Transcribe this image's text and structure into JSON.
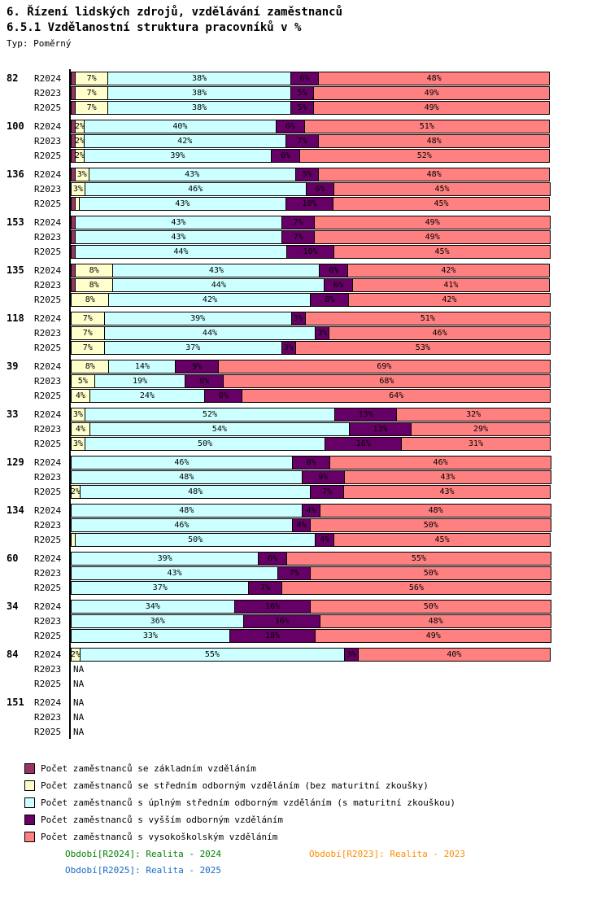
{
  "header": {
    "title1": "6. Řízení lidských zdrojů, vzdělávání zaměstnanců",
    "title2": "6.5.1 Vzdělanostní struktura pracovníků v %",
    "type_label": "Typ: Poměrný"
  },
  "chart_data": {
    "type": "bar",
    "orientation": "horizontal",
    "stacked": true,
    "value_unit": "%",
    "xlim": [
      0,
      100
    ],
    "na_text": "NA",
    "axis_color": "#000000",
    "series": [
      {
        "name": "Počet zaměstnanců se základním vzděláním",
        "color": "#993366"
      },
      {
        "name": "Počet zaměstnanců se středním odborným vzděláním (bez maturitní zkoušky)",
        "color": "#FFFFCC"
      },
      {
        "name": "Počet zaměstnanců s úplným středním odborným vzděláním (s maturitní zkouškou)",
        "color": "#CCFFFF"
      },
      {
        "name": "Počet zaměstnanců s vyšším odborným vzděláním",
        "color": "#660066"
      },
      {
        "name": "Počet zaměstnanců s vysokoškolským vzděláním",
        "color": "#FF8080"
      }
    ],
    "groups": [
      {
        "label": "82",
        "rows": [
          {
            "period": "R2024",
            "values": [
              1,
              7,
              38,
              6,
              48
            ]
          },
          {
            "period": "R2023",
            "values": [
              1,
              7,
              38,
              5,
              49
            ]
          },
          {
            "period": "R2025",
            "values": [
              1,
              7,
              38,
              5,
              49
            ]
          }
        ]
      },
      {
        "label": "100",
        "rows": [
          {
            "period": "R2024",
            "values": [
              1,
              2,
              40,
              6,
              51
            ]
          },
          {
            "period": "R2023",
            "values": [
              1,
              2,
              42,
              7,
              48
            ]
          },
          {
            "period": "R2025",
            "values": [
              1,
              2,
              39,
              6,
              52
            ]
          }
        ]
      },
      {
        "label": "136",
        "rows": [
          {
            "period": "R2024",
            "values": [
              1,
              3,
              43,
              5,
              48
            ]
          },
          {
            "period": "R2023",
            "values": [
              0,
              3,
              46,
              6,
              45
            ]
          },
          {
            "period": "R2025",
            "values": [
              1,
              1,
              43,
              10,
              45
            ]
          }
        ]
      },
      {
        "label": "153",
        "rows": [
          {
            "period": "R2024",
            "values": [
              1,
              0,
              43,
              7,
              49
            ]
          },
          {
            "period": "R2023",
            "values": [
              1,
              0,
              43,
              7,
              49
            ]
          },
          {
            "period": "R2025",
            "values": [
              1,
              0,
              44,
              10,
              45
            ]
          }
        ]
      },
      {
        "label": "135",
        "rows": [
          {
            "period": "R2024",
            "values": [
              1,
              8,
              43,
              6,
              42
            ]
          },
          {
            "period": "R2023",
            "values": [
              1,
              8,
              44,
              6,
              41
            ]
          },
          {
            "period": "R2025",
            "values": [
              0,
              8,
              42,
              8,
              42
            ]
          }
        ]
      },
      {
        "label": "118",
        "rows": [
          {
            "period": "R2024",
            "values": [
              0,
              7,
              39,
              3,
              51
            ]
          },
          {
            "period": "R2023",
            "values": [
              0,
              7,
              44,
              3,
              46
            ]
          },
          {
            "period": "R2025",
            "values": [
              0,
              7,
              37,
              3,
              53
            ]
          }
        ]
      },
      {
        "label": "39",
        "rows": [
          {
            "period": "R2024",
            "values": [
              0,
              8,
              14,
              9,
              69
            ]
          },
          {
            "period": "R2023",
            "values": [
              0,
              5,
              19,
              8,
              68
            ]
          },
          {
            "period": "R2025",
            "values": [
              0,
              4,
              24,
              8,
              64
            ]
          }
        ]
      },
      {
        "label": "33",
        "rows": [
          {
            "period": "R2024",
            "values": [
              0,
              3,
              52,
              13,
              32
            ]
          },
          {
            "period": "R2023",
            "values": [
              0,
              4,
              54,
              13,
              29
            ]
          },
          {
            "period": "R2025",
            "values": [
              0,
              3,
              50,
              16,
              31
            ]
          }
        ]
      },
      {
        "label": "129",
        "rows": [
          {
            "period": "R2024",
            "values": [
              0,
              0,
              46,
              8,
              46
            ]
          },
          {
            "period": "R2023",
            "values": [
              0,
              0,
              48,
              9,
              43
            ]
          },
          {
            "period": "R2025",
            "values": [
              0,
              2,
              48,
              7,
              43
            ]
          }
        ]
      },
      {
        "label": "134",
        "rows": [
          {
            "period": "R2024",
            "values": [
              0,
              0,
              48,
              4,
              48
            ]
          },
          {
            "period": "R2023",
            "values": [
              0,
              0,
              46,
              4,
              50
            ]
          },
          {
            "period": "R2025",
            "values": [
              0,
              1,
              50,
              4,
              45
            ]
          }
        ]
      },
      {
        "label": "60",
        "rows": [
          {
            "period": "R2024",
            "values": [
              0,
              0,
              39,
              6,
              55
            ]
          },
          {
            "period": "R2023",
            "values": [
              0,
              0,
              43,
              7,
              50
            ]
          },
          {
            "period": "R2025",
            "values": [
              0,
              0,
              37,
              7,
              56
            ]
          }
        ]
      },
      {
        "label": "34",
        "rows": [
          {
            "period": "R2024",
            "values": [
              0,
              0,
              34,
              16,
              50
            ]
          },
          {
            "period": "R2023",
            "values": [
              0,
              0,
              36,
              16,
              48
            ]
          },
          {
            "period": "R2025",
            "values": [
              0,
              0,
              33,
              18,
              49
            ]
          }
        ]
      },
      {
        "label": "84",
        "rows": [
          {
            "period": "R2024",
            "values": [
              0,
              2,
              55,
              3,
              40
            ]
          },
          {
            "period": "R2023",
            "values": null
          },
          {
            "period": "R2025",
            "values": null
          }
        ]
      },
      {
        "label": "151",
        "rows": [
          {
            "period": "R2024",
            "values": null
          },
          {
            "period": "R2023",
            "values": null
          },
          {
            "period": "R2025",
            "values": null
          }
        ]
      }
    ]
  },
  "footnotes": [
    {
      "text": "Období[R2024]: Realita - 2024",
      "color": "#008000"
    },
    {
      "text": "Období[R2023]: Realita - 2023",
      "color": "#FF8C00"
    },
    {
      "text": "Období[R2025]: Realita - 2025",
      "color": "#1569C7"
    }
  ]
}
